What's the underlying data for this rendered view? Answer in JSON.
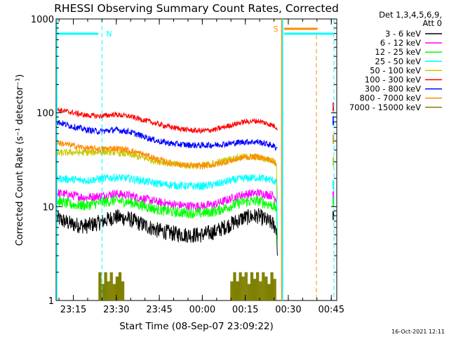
{
  "chart_data": {
    "type": "line",
    "title": "RHESSI Observing Summary Count Rates, Corrected",
    "xlabel": "Start Time (08-Sep-07 23:09:22)",
    "ylabel": "Corrected Count Rate (s⁻¹ detector⁻¹)",
    "ylog": true,
    "ylim": [
      1,
      1000
    ],
    "xlim_minutes": [
      -0.4,
      97.5
    ],
    "x_ticks": [
      {
        "label": "23:15",
        "minutes": 5.6
      },
      {
        "label": "23:30",
        "minutes": 20.6
      },
      {
        "label": "23:45",
        "minutes": 35.6
      },
      {
        "label": "00:00",
        "minutes": 50.6
      },
      {
        "label": "00:15",
        "minutes": 65.6
      },
      {
        "label": "00:30",
        "minutes": 80.6
      },
      {
        "label": "00:45",
        "minutes": 95.6
      }
    ],
    "y_ticks": [
      {
        "label": "1",
        "value": 1
      },
      {
        "label": "10",
        "value": 10
      },
      {
        "label": "100",
        "value": 100
      },
      {
        "label": "1000",
        "value": 1000
      }
    ],
    "legend_header": [
      "Det 1,3,4,5,6,9,",
      "Att 0"
    ],
    "legend_position": "right",
    "series": [
      {
        "name": "3 - 6 keV",
        "color": "#000000",
        "x": [
          0,
          5,
          10,
          15,
          20,
          25,
          30,
          35,
          40,
          45,
          50,
          55,
          60,
          65,
          70,
          75,
          76.5
        ],
        "y": [
          7.5,
          6.5,
          6.2,
          6.8,
          7.8,
          7.4,
          6.4,
          5.6,
          5.2,
          5.0,
          5.0,
          5.4,
          6.4,
          7.6,
          8.0,
          6.6,
          5.8
        ]
      },
      {
        "name": "6 - 12 keV",
        "color": "#ff00ff",
        "x": [
          0,
          5,
          10,
          15,
          20,
          25,
          30,
          35,
          40,
          45,
          50,
          55,
          60,
          65,
          70,
          75,
          76.5
        ],
        "y": [
          14,
          13.2,
          12.5,
          13,
          13.8,
          13.2,
          12.2,
          11.2,
          10.6,
          10.2,
          10.1,
          10.6,
          12,
          13.5,
          14,
          13.2,
          12.2
        ]
      },
      {
        "name": "12 - 25 keV",
        "color": "#00ff00",
        "x": [
          0,
          5,
          10,
          15,
          20,
          25,
          30,
          35,
          40,
          45,
          50,
          55,
          60,
          65,
          70,
          75,
          76.5
        ],
        "y": [
          11.5,
          10.5,
          10.3,
          11,
          11.6,
          11.2,
          10.2,
          9.3,
          8.8,
          8.6,
          8.5,
          8.9,
          10,
          11.3,
          11.5,
          10.3,
          9.6
        ]
      },
      {
        "name": "25 - 50 keV",
        "color": "#00ffff",
        "x": [
          0,
          5,
          10,
          15,
          20,
          25,
          30,
          35,
          40,
          45,
          50,
          55,
          60,
          65,
          70,
          75,
          76.5
        ],
        "y": [
          20,
          19.5,
          19,
          19.8,
          20.5,
          20,
          18.8,
          17.6,
          17,
          16.6,
          16.5,
          17.2,
          18.8,
          20,
          20.4,
          19.2,
          18.2
        ]
      },
      {
        "name": "50 - 100 keV",
        "color": "#c8c800",
        "x": [
          0,
          5,
          10,
          15,
          20,
          25,
          30,
          35,
          40,
          45,
          50,
          55,
          60,
          65,
          70,
          75,
          76.5
        ],
        "y": [
          37,
          38,
          37.5,
          38.5,
          38,
          36,
          33,
          30.5,
          28.5,
          27.5,
          27.5,
          29,
          32,
          34,
          33.5,
          31,
          29
        ]
      },
      {
        "name": "100 - 300 keV",
        "color": "#ff0000",
        "x": [
          0,
          5,
          10,
          15,
          20,
          25,
          30,
          35,
          40,
          45,
          50,
          55,
          60,
          65,
          70,
          75,
          76.5
        ],
        "y": [
          108,
          101,
          94,
          92,
          96,
          92,
          84,
          76,
          70,
          66,
          64,
          66,
          73,
          80,
          82,
          74,
          70
        ]
      },
      {
        "name": "300 - 800 keV",
        "color": "#0000ff",
        "x": [
          0,
          5,
          10,
          15,
          20,
          25,
          30,
          35,
          40,
          45,
          50,
          55,
          60,
          65,
          70,
          75,
          76.5
        ],
        "y": [
          80,
          72,
          66,
          63,
          66,
          63,
          56,
          50,
          47,
          45.5,
          45,
          45.5,
          47,
          49,
          49,
          45,
          42
        ]
      },
      {
        "name": "800 - 7000 keV",
        "color": "#ff8c00",
        "x": [
          0,
          5,
          10,
          15,
          20,
          25,
          30,
          35,
          40,
          45,
          50,
          55,
          60,
          65,
          70,
          75,
          76.5
        ],
        "y": [
          48,
          45,
          42,
          41,
          42,
          40,
          36,
          32,
          29,
          27.5,
          27,
          28,
          30.5,
          33.5,
          34,
          31,
          29
        ]
      },
      {
        "name": "7000 - 15000 keV",
        "color": "#808000",
        "x": [
          14.5,
          15.5,
          16.5,
          17.5,
          18.5,
          19.5,
          20.5,
          21.5,
          22.5,
          60.5,
          61.5,
          62.5,
          63.5,
          64.5,
          65.5,
          66.5,
          67.5,
          68.5,
          69.5,
          70.5,
          71.5,
          72.5,
          73.5,
          74.5,
          75.5
        ],
        "y": [
          2.0,
          1.5,
          2.0,
          1.6,
          2.0,
          1.5,
          1.8,
          2.0,
          1.6,
          1.6,
          2.0,
          1.6,
          2.0,
          1.8,
          2.0,
          1.5,
          2.0,
          1.7,
          2.0,
          1.6,
          2.0,
          1.8,
          1.5,
          2.0,
          1.7
        ]
      }
    ],
    "annotations": [
      {
        "label": "N",
        "color": "#00ffff",
        "x_minutes": 15.6
      },
      {
        "label": "S",
        "color": "#ff8c00",
        "x_minutes": 86.0
      }
    ],
    "footer_date": "16-Oct-2021 12:11"
  }
}
